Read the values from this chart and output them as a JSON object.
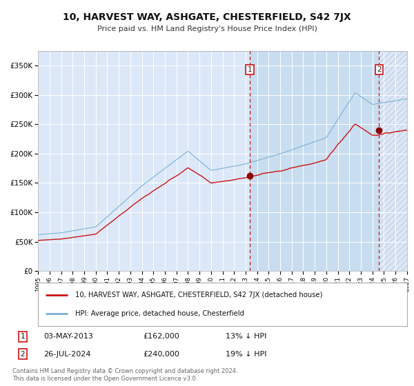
{
  "title": "10, HARVEST WAY, ASHGATE, CHESTERFIELD, S42 7JX",
  "subtitle": "Price paid vs. HM Land Registry's House Price Index (HPI)",
  "bg_color": "#ffffff",
  "plot_bg_color": "#dce8f8",
  "hpi_color": "#7ab0d8",
  "price_color": "#cc1111",
  "marker_color": "#8b0000",
  "legend_label_price": "10, HARVEST WAY, ASHGATE, CHESTERFIELD, S42 7JX (detached house)",
  "legend_label_hpi": "HPI: Average price, detached house, Chesterfield",
  "transaction1_date": "03-MAY-2013",
  "transaction1_price": 162000,
  "transaction1_pct": "13%",
  "transaction2_date": "26-JUL-2024",
  "transaction2_price": 240000,
  "transaction2_pct": "19%",
  "footer1": "Contains HM Land Registry data © Crown copyright and database right 2024.",
  "footer2": "This data is licensed under the Open Government Licence v3.0.",
  "ylim_max": 375000,
  "ylim_min": 0,
  "ytick_values": [
    0,
    50000,
    100000,
    150000,
    200000,
    250000,
    300000,
    350000
  ],
  "ytick_labels": [
    "£0",
    "£50K",
    "£100K",
    "£150K",
    "£200K",
    "£250K",
    "£300K",
    "£350K"
  ],
  "year_start": 1995,
  "year_end": 2027,
  "vline1_year": 2013.37,
  "vline2_year": 2024.57
}
